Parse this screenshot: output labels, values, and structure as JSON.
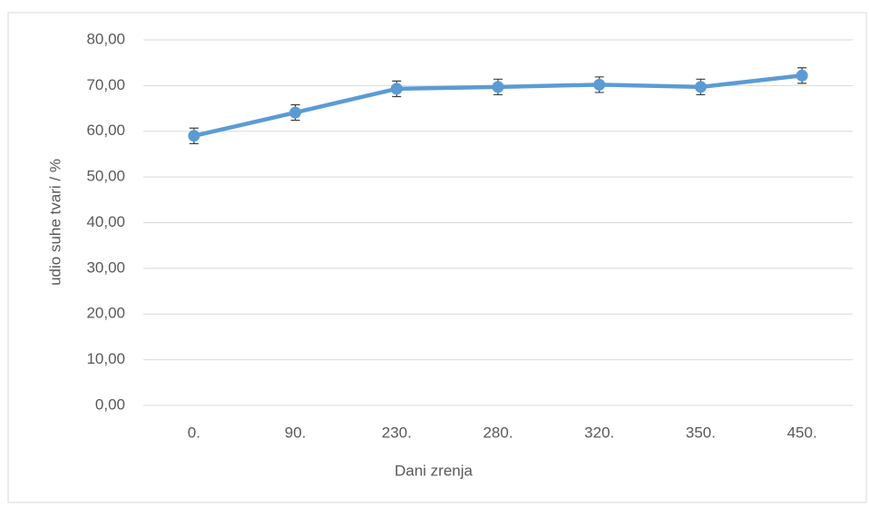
{
  "chart_data": {
    "type": "line",
    "x_label": "Dani zrenja",
    "y_label": "udio suhe tvari / %",
    "categories": [
      "0.",
      "90.",
      "230.",
      "280.",
      "320.",
      "350.",
      "450."
    ],
    "series": [
      {
        "color": "#5b9bd5",
        "values": [
          59.0,
          64.1,
          69.3,
          69.7,
          70.2,
          69.7,
          72.2
        ],
        "errors": [
          1.7,
          1.7,
          1.7,
          1.7,
          1.7,
          1.7,
          1.7
        ]
      }
    ],
    "ylim": [
      0,
      80
    ],
    "yticks": [
      {
        "value": 0,
        "label": "0,00"
      },
      {
        "value": 10,
        "label": "10,00"
      },
      {
        "value": 20,
        "label": "20,00"
      },
      {
        "value": 30,
        "label": "30,00"
      },
      {
        "value": 40,
        "label": "40,00"
      },
      {
        "value": 50,
        "label": "50,00"
      },
      {
        "value": 60,
        "label": "60,00"
      },
      {
        "value": 70,
        "label": "70,00"
      },
      {
        "value": 80,
        "label": "80,00"
      }
    ],
    "grid": true
  }
}
